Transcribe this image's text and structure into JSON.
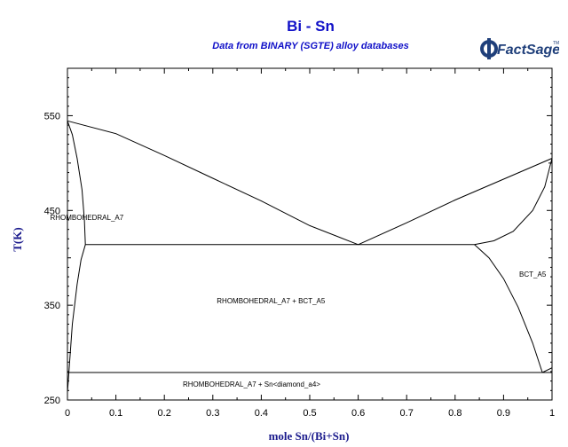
{
  "header": {
    "title": "Bi - Sn",
    "subtitle": "Data from BINARY (SGTE) alloy databases",
    "logo_text": "FactSage",
    "logo_mark": "TM"
  },
  "colors": {
    "title": "#1010c8",
    "axis_label": "#1a1a8c",
    "logo": "#1f3f7a",
    "line": "#000000"
  },
  "chart_data": {
    "type": "line",
    "title": "Bi - Sn",
    "subtitle": "Data from BINARY (SGTE) alloy databases",
    "xlabel": "mole Sn/(Bi+Sn)",
    "ylabel": "T(K)",
    "xlim": [
      0,
      1
    ],
    "ylim": [
      250,
      600
    ],
    "x_ticks": [
      0,
      0.1,
      0.2,
      0.3,
      0.4,
      0.5,
      0.6,
      0.7,
      0.8,
      0.9,
      1
    ],
    "x_tick_labels": [
      "0",
      "0.1",
      "0.2",
      "0.3",
      "0.4",
      "0.5",
      "0.6",
      "0.7",
      "0.8",
      "0.9",
      "1"
    ],
    "y_ticks": [
      250,
      350,
      450,
      550
    ],
    "y_tick_labels": [
      "250",
      "350",
      "450",
      "550"
    ],
    "grid": false,
    "series": [
      {
        "values": [
          [
            0,
            544.5
          ],
          [
            0.1,
            531
          ],
          [
            0.2,
            508
          ],
          [
            0.3,
            484
          ],
          [
            0.4,
            460
          ],
          [
            0.5,
            434
          ],
          [
            0.6,
            414
          ]
        ]
      },
      {
        "values": [
          [
            0.6,
            414
          ],
          [
            0.7,
            437
          ],
          [
            0.8,
            461
          ],
          [
            0.9,
            483
          ],
          [
            1,
            505
          ]
        ]
      },
      {
        "values": [
          [
            0,
            544.5
          ],
          [
            0.01,
            530
          ],
          [
            0.02,
            505
          ],
          [
            0.03,
            472
          ],
          [
            0.035,
            440
          ],
          [
            0.037,
            414
          ]
        ]
      },
      {
        "values": [
          [
            0,
            258
          ],
          [
            0.01,
            330
          ],
          [
            0.02,
            372
          ],
          [
            0.028,
            398
          ],
          [
            0.037,
            414
          ]
        ]
      },
      {
        "values": [
          [
            0.037,
            414
          ],
          [
            0.84,
            414
          ]
        ]
      },
      {
        "values": [
          [
            0.84,
            414
          ],
          [
            0.88,
            418
          ],
          [
            0.92,
            428
          ],
          [
            0.96,
            450
          ],
          [
            0.985,
            475
          ],
          [
            1,
            505
          ]
        ]
      },
      {
        "values": [
          [
            0.84,
            414
          ],
          [
            0.87,
            400
          ],
          [
            0.9,
            378
          ],
          [
            0.93,
            348
          ],
          [
            0.96,
            310
          ],
          [
            0.98,
            279
          ]
        ]
      },
      {
        "values": [
          [
            0,
            279
          ],
          [
            1,
            279
          ]
        ]
      },
      {
        "values": [
          [
            0.98,
            279
          ],
          [
            1,
            284
          ]
        ]
      }
    ],
    "annotations": [
      {
        "text": "RHOMBOHEDRAL_A7",
        "x": 0.04,
        "y": 440
      },
      {
        "text": "RHOMBOHEDRAL_A7 + BCT_A5",
        "x": 0.42,
        "y": 352
      },
      {
        "text": "BCT_A5",
        "x": 0.96,
        "y": 380
      },
      {
        "text": "RHOMBOHEDRAL_A7 + Sn<diamond_a4>",
        "x": 0.38,
        "y": 264
      }
    ]
  }
}
